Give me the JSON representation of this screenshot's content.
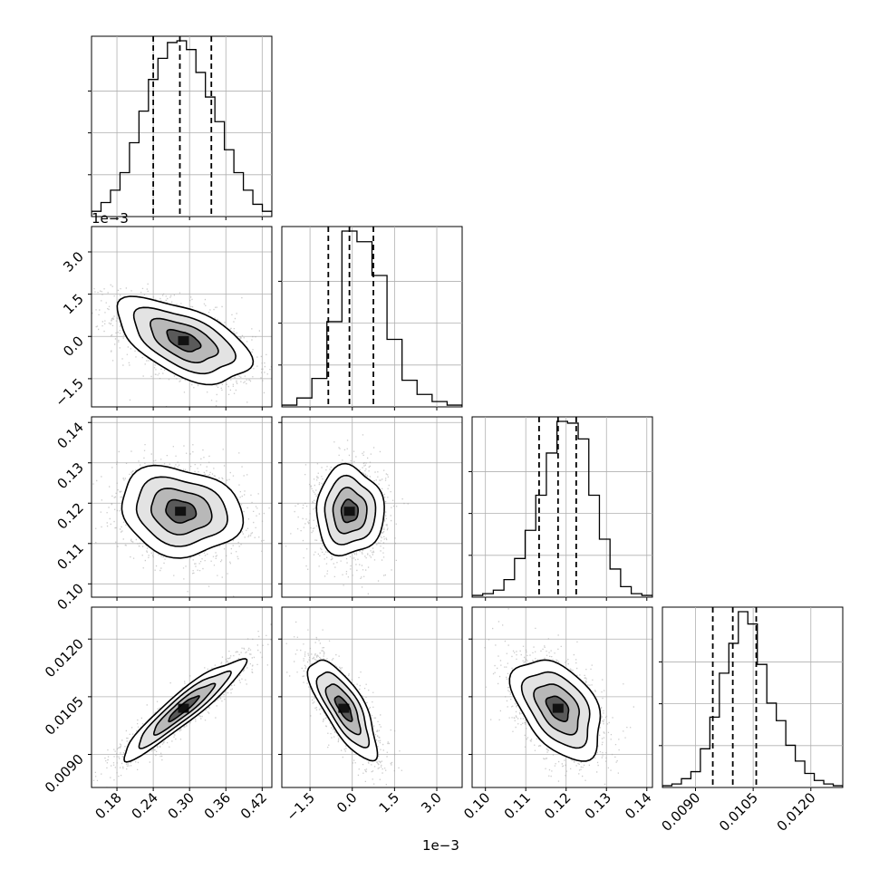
{
  "chart_data": {
    "type": "corner",
    "parameters": 4,
    "offset_labels": {
      "p1_y": "1e−3",
      "p1_x": "1e−3"
    },
    "histograms": [
      {
        "param": 0,
        "range": [
          0.138,
          0.436
        ],
        "counts": [
          3,
          8,
          15,
          25,
          42,
          60,
          78,
          90,
          99,
          100,
          95,
          82,
          68,
          54,
          38,
          25,
          15,
          7,
          3
        ],
        "quantiles": [
          0.24,
          0.284,
          0.336
        ]
      },
      {
        "param": 1,
        "range": [
          -2.5,
          3.9
        ],
        "counts": [
          1,
          5,
          16,
          48,
          99,
          93,
          74,
          38,
          15,
          7,
          3,
          1
        ],
        "quantiles": [
          -0.85,
          -0.1,
          0.75
        ]
      },
      {
        "param": 2,
        "range": [
          0.0967,
          0.1414
        ],
        "counts": [
          1,
          2,
          4,
          10,
          22,
          38,
          58,
          82,
          100,
          99,
          90,
          58,
          33,
          16,
          6,
          2,
          1
        ],
        "quantiles": [
          0.1133,
          0.118,
          0.1225
        ]
      },
      {
        "param": 3,
        "range": [
          0.00814,
          0.01283
        ],
        "counts": [
          1,
          2,
          5,
          9,
          22,
          40,
          65,
          82,
          100,
          93,
          70,
          48,
          38,
          24,
          15,
          8,
          4,
          2,
          1
        ],
        "quantiles": [
          0.00945,
          0.00997,
          0.01058
        ]
      }
    ],
    "axes": [
      {
        "range": [
          0.138,
          0.436
        ],
        "ticks": [
          0.18,
          0.24,
          0.3,
          0.36,
          0.42
        ],
        "tick_labels": [
          "0.18",
          "0.24",
          "0.30",
          "0.36",
          "0.42"
        ]
      },
      {
        "range": [
          -2.5,
          3.9
        ],
        "ticks": [
          -1.5,
          0.0,
          1.5,
          3.0
        ],
        "tick_labels": [
          "−1.5",
          "0.0",
          "1.5",
          "3.0"
        ]
      },
      {
        "range": [
          0.0967,
          0.1414
        ],
        "ticks": [
          0.1,
          0.11,
          0.12,
          0.13,
          0.14
        ],
        "tick_labels": [
          "0.10",
          "0.11",
          "0.12",
          "0.13",
          "0.14"
        ]
      },
      {
        "range": [
          0.00814,
          0.01283
        ],
        "ticks": [
          0.009,
          0.0105,
          0.012
        ],
        "tick_labels": [
          "0.0090",
          "0.0105",
          "0.0120"
        ]
      }
    ],
    "pairs": [
      {
        "x": 0,
        "y": 1,
        "mean": [
          0.29,
          -0.15
        ],
        "sigma": [
          0.055,
          0.75
        ],
        "corr": -0.55
      },
      {
        "x": 0,
        "y": 2,
        "mean": [
          0.285,
          0.118
        ],
        "sigma": [
          0.05,
          0.0055
        ],
        "corr": -0.15
      },
      {
        "x": 1,
        "y": 2,
        "mean": [
          -0.1,
          0.118
        ],
        "sigma": [
          0.6,
          0.0055
        ],
        "corr": 0.0
      },
      {
        "x": 0,
        "y": 3,
        "mean": [
          0.29,
          0.0102
        ],
        "sigma": [
          0.05,
          0.00065
        ],
        "corr": 0.93
      },
      {
        "x": 1,
        "y": 3,
        "mean": [
          -0.3,
          0.0102
        ],
        "sigma": [
          0.6,
          0.00065
        ],
        "corr": -0.75
      },
      {
        "x": 2,
        "y": 3,
        "mean": [
          0.118,
          0.0102
        ],
        "sigma": [
          0.0055,
          0.00065
        ],
        "corr": -0.45
      }
    ],
    "colors": {
      "line": "#000000",
      "scatter": "#a0a0a0",
      "grid": "#b0b0b0"
    },
    "grid": true
  }
}
